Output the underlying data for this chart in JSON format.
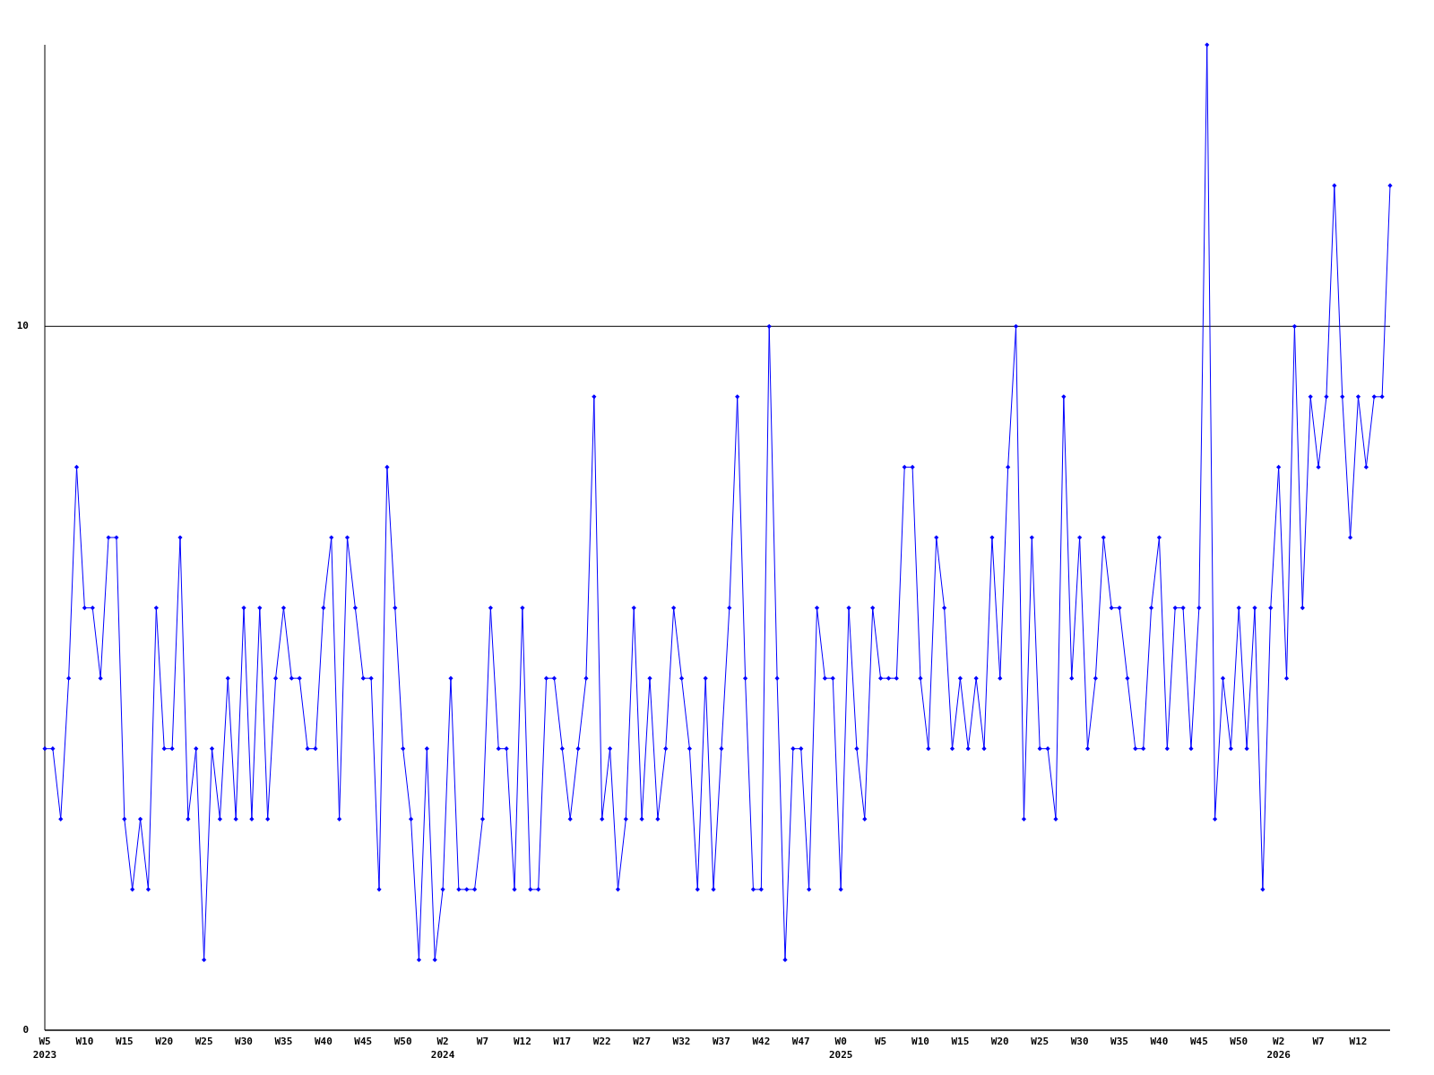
{
  "chart_data": {
    "type": "line",
    "categories": [
      "W5\n2023",
      null,
      null,
      null,
      null,
      "W10",
      null,
      null,
      null,
      null,
      "W15",
      null,
      null,
      null,
      null,
      "W20",
      null,
      null,
      null,
      null,
      "W25",
      null,
      null,
      null,
      null,
      "W30",
      null,
      null,
      null,
      null,
      "W35",
      null,
      null,
      null,
      null,
      "W40",
      null,
      null,
      null,
      null,
      "W45",
      null,
      null,
      null,
      null,
      "W50",
      null,
      null,
      null,
      null,
      "W2\n2024",
      null,
      null,
      null,
      null,
      "W7",
      null,
      null,
      null,
      null,
      "W12",
      null,
      null,
      null,
      null,
      "W17",
      null,
      null,
      null,
      null,
      "W22",
      null,
      null,
      null,
      null,
      "W27",
      null,
      null,
      null,
      null,
      "W32",
      null,
      null,
      null,
      null,
      "W37",
      null,
      null,
      null,
      null,
      "W42",
      null,
      null,
      null,
      null,
      "W47",
      null,
      null,
      null,
      null,
      "W0\n2025",
      null,
      null,
      null,
      null,
      "W5",
      null,
      null,
      null,
      null,
      "W10",
      null,
      null,
      null,
      null,
      "W15",
      null,
      null,
      null,
      null,
      "W20",
      null,
      null,
      null,
      null,
      "W25",
      null,
      null,
      null,
      null,
      "W30",
      null,
      null,
      null,
      null,
      "W35",
      null,
      null,
      null,
      null,
      "W40",
      null,
      null,
      null,
      null,
      "W45",
      null,
      null,
      null,
      null,
      "W50",
      null,
      null,
      null,
      null,
      "W2\n2026",
      null,
      null,
      null,
      null,
      "W7",
      null,
      null,
      null,
      null,
      "W12",
      null,
      null,
      null,
      null
    ],
    "series": [
      {
        "color": "#0000ff",
        "values": [
          4,
          4,
          3,
          5,
          8,
          6,
          6,
          5,
          7,
          7,
          3,
          2,
          3,
          2,
          6,
          4,
          4,
          7,
          3,
          4,
          1,
          4,
          3,
          5,
          3,
          6,
          3,
          6,
          3,
          5,
          6,
          5,
          5,
          4,
          4,
          6,
          7,
          3,
          7,
          6,
          5,
          5,
          2,
          8,
          6,
          4,
          3,
          1,
          4,
          1,
          2,
          5,
          2,
          2,
          2,
          3,
          6,
          4,
          4,
          2,
          6,
          2,
          2,
          5,
          5,
          4,
          3,
          4,
          5,
          9,
          3,
          4,
          2,
          3,
          6,
          3,
          5,
          3,
          4,
          6,
          5,
          4,
          2,
          5,
          2,
          4,
          6,
          9,
          5,
          2,
          2,
          10,
          5,
          1,
          4,
          4,
          2,
          6,
          5,
          5,
          2,
          6,
          4,
          3,
          6,
          5,
          5,
          5,
          8,
          8,
          5,
          4,
          7,
          6,
          4,
          5,
          4,
          5,
          4,
          7,
          5,
          8,
          10,
          3,
          7,
          4,
          4,
          3,
          9,
          5,
          7,
          4,
          5,
          7,
          6,
          6,
          5,
          4,
          4,
          6,
          7,
          4,
          6,
          6,
          4,
          6,
          14,
          3,
          5,
          4,
          6,
          4,
          6,
          2,
          6,
          8,
          5,
          10,
          6,
          9,
          8,
          9,
          12,
          9,
          7,
          9,
          8,
          9,
          9,
          12
        ]
      }
    ],
    "ylim": [
      0,
      14
    ],
    "yticks": [
      0,
      10
    ],
    "grid": "y",
    "marker": "diamond",
    "line_style": "solid"
  }
}
